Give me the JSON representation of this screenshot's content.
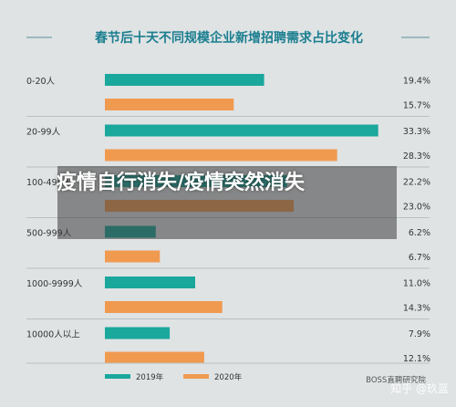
{
  "chart_data": {
    "type": "bar",
    "orientation": "horizontal",
    "title": "春节后十天不同规模企业新增招聘需求占比变化",
    "categories": [
      "0-20人",
      "20-99人",
      "100-499人",
      "500-999人",
      "1000-9999人",
      "10000人以上"
    ],
    "series": [
      {
        "name": "2019年",
        "values": [
          19.4,
          33.3,
          22.2,
          6.2,
          11.0,
          7.9
        ],
        "labels": [
          "19.4%",
          "33.3%",
          "22.2%",
          "6.2%",
          "11.0%",
          "7.9%"
        ]
      },
      {
        "name": "2020年",
        "values": [
          15.7,
          28.3,
          23.0,
          6.7,
          14.3,
          12.1
        ],
        "labels": [
          "15.7%",
          "28.3%",
          "23.0%",
          "6.7%",
          "14.3%",
          "12.1%"
        ]
      }
    ],
    "legend_position": "bottom",
    "source": "BOSS直聘研究院"
  },
  "overlay": {
    "text": "疫情自行消失/疫情突然消失"
  },
  "watermark": {
    "text": "知乎 @玖蓝",
    "logo_text": "BOSS直聘"
  },
  "colors": {
    "series_2019": "#1aa79c",
    "series_2020": "#f09a50",
    "title": "#1b7e8f",
    "background": "#dfe3e4"
  }
}
